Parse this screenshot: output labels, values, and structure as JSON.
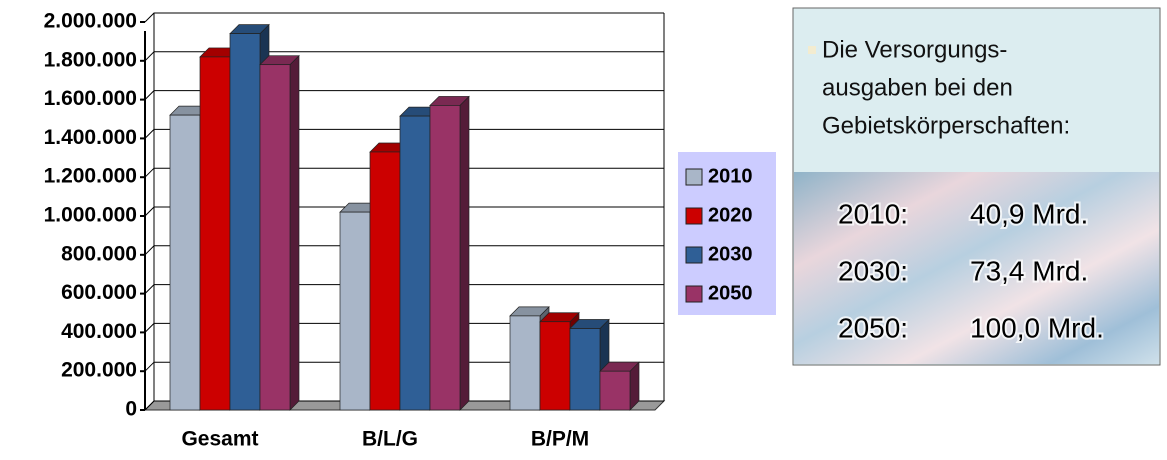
{
  "chart_data": {
    "type": "bar",
    "categories": [
      "Gesamt",
      "B/L/G",
      "B/P/M"
    ],
    "series": [
      {
        "name": "2010",
        "color": "#a9b6c8",
        "values": [
          1520000,
          1020000,
          485000
        ]
      },
      {
        "name": "2020",
        "color": "#cc0000",
        "values": [
          1820000,
          1330000,
          455000
        ]
      },
      {
        "name": "2030",
        "color": "#2f5f96",
        "values": [
          1940000,
          1515000,
          420000
        ]
      },
      {
        "name": "2050",
        "color": "#993366",
        "values": [
          1780000,
          1570000,
          200000
        ]
      }
    ],
    "ylim": [
      0,
      2000000
    ],
    "yticks": [
      0,
      {
        "value": 200000,
        "label": "200.000"
      },
      {
        "value": 400000,
        "label": "400.000"
      },
      {
        "value": 600000,
        "label": "600.000"
      },
      {
        "value": 800000,
        "label": "800.000"
      },
      {
        "value": 1000000,
        "label": "1.000.000"
      },
      {
        "value": 1200000,
        "label": "1.200.000"
      },
      {
        "value": 1400000,
        "label": "1.400.000"
      },
      {
        "value": 1600000,
        "label": "1.600.000"
      },
      {
        "value": 1800000,
        "label": "1.800.000"
      },
      {
        "value": 2000000,
        "label": "2.000.000"
      }
    ],
    "grid": true,
    "legend": "right"
  },
  "panel": {
    "lines": [
      "Die Versorgungs-",
      "ausgaben bei den",
      "Gebietskörperschaften:"
    ],
    "rows": [
      [
        "2010:",
        "40,9 Mrd."
      ],
      [
        "2030:",
        "73,4 Mrd."
      ],
      [
        "2050:",
        "100,0 Mrd."
      ]
    ]
  }
}
